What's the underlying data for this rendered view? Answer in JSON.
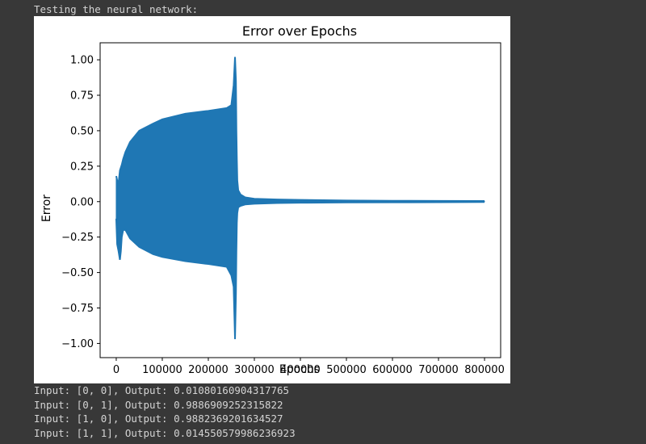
{
  "console": {
    "header_line": "Testing the neural network:",
    "output_lines": [
      "Input: [0, 0], Output: 0.01080160904317765",
      "Input: [0, 1], Output: 0.9886909252315822",
      "Input: [1, 0], Output: 0.9882369201634527",
      "Input: [1, 1], Output: 0.014550579986236923"
    ]
  },
  "chart_data": {
    "type": "line",
    "title": "Error over Epochs",
    "xlabel": "Epochs",
    "ylabel": "Error",
    "xlim": [
      -35000,
      835000
    ],
    "ylim": [
      -1.1,
      1.12
    ],
    "x_ticks": [
      0,
      100000,
      200000,
      300000,
      400000,
      500000,
      600000,
      700000,
      800000
    ],
    "x_tick_labels": [
      "0",
      "100000",
      "200000",
      "300000",
      "400000",
      "500000",
      "600000",
      "700000",
      "800000"
    ],
    "y_ticks": [
      1.0,
      0.75,
      0.5,
      0.25,
      0.0,
      -0.25,
      -0.5,
      -0.75,
      -1.0
    ],
    "y_tick_labels": [
      "1.00",
      "0.75",
      "0.50",
      "0.25",
      "0.00",
      "−0.25",
      "−0.50",
      "−0.75",
      "−1.00"
    ],
    "grid": false,
    "series_color": "#1f77b4",
    "series": [
      {
        "x": [
          0,
          2000,
          5000,
          8000,
          10000,
          12000,
          15000,
          20000,
          30000,
          50000,
          80000,
          100000,
          150000,
          200000,
          240000,
          250000,
          255000,
          258000,
          260000,
          261000,
          262000,
          263000,
          265000,
          270000,
          280000,
          300000,
          350000,
          400000,
          500000,
          600000,
          700000,
          800000
        ],
        "upper": [
          0.18,
          0.15,
          0.13,
          0.22,
          0.24,
          0.26,
          0.3,
          0.35,
          0.42,
          0.5,
          0.55,
          0.58,
          0.62,
          0.64,
          0.66,
          0.68,
          0.82,
          1.02,
          0.85,
          0.5,
          0.3,
          0.15,
          0.08,
          0.05,
          0.03,
          0.02,
          0.015,
          0.012,
          0.008,
          0.006,
          0.005,
          0.004
        ],
        "lower": [
          -0.12,
          -0.3,
          -0.35,
          -0.41,
          -0.35,
          -0.25,
          -0.2,
          -0.2,
          -0.26,
          -0.32,
          -0.37,
          -0.39,
          -0.42,
          -0.44,
          -0.46,
          -0.52,
          -0.6,
          -0.97,
          -0.65,
          -0.35,
          -0.15,
          -0.08,
          -0.04,
          -0.03,
          -0.02,
          -0.015,
          -0.01,
          -0.008,
          -0.006,
          -0.005,
          -0.004,
          -0.003
        ]
      }
    ]
  }
}
